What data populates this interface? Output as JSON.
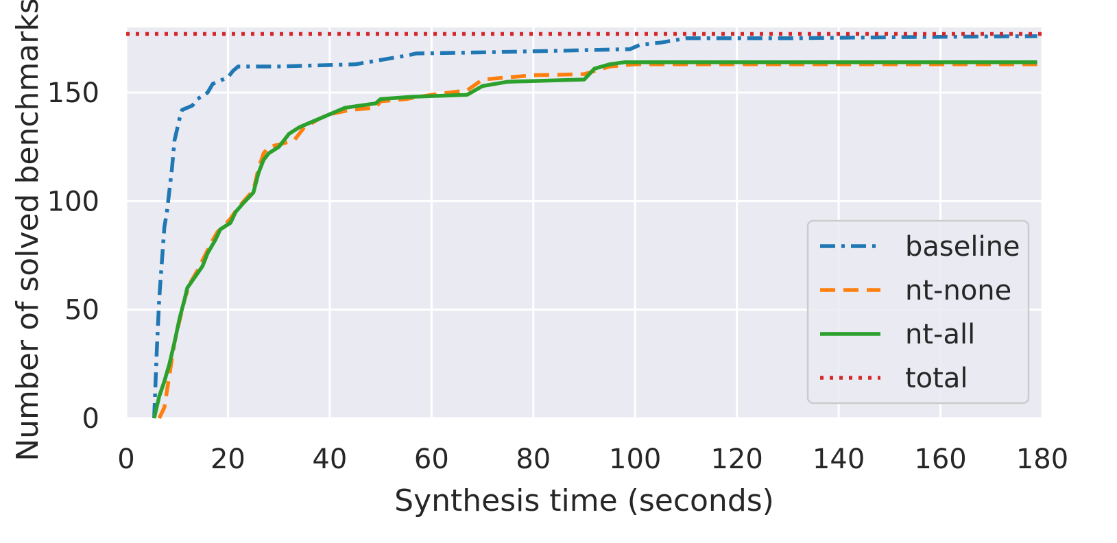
{
  "chart_data": {
    "type": "line",
    "xlabel": "Synthesis time (seconds)",
    "ylabel": "Number of solved benchmarks",
    "xlim": [
      0,
      180
    ],
    "ylim": [
      0,
      180
    ],
    "xticks": [
      "0",
      "20",
      "40",
      "60",
      "80",
      "100",
      "120",
      "140",
      "160",
      "180"
    ],
    "yticks": [
      "0",
      "50",
      "100",
      "150"
    ],
    "grid": true,
    "legend_position": "lower-right",
    "series": [
      {
        "name": "baseline",
        "color": "#1f77b4",
        "style": "dashdot",
        "points": [
          [
            5.5,
            0
          ],
          [
            6.0,
            30
          ],
          [
            6.5,
            55
          ],
          [
            7.5,
            88
          ],
          [
            8.0,
            95
          ],
          [
            9.0,
            115
          ],
          [
            9.5,
            128
          ],
          [
            10.5,
            138
          ],
          [
            11.0,
            142
          ],
          [
            13.0,
            144
          ],
          [
            14.0,
            147
          ],
          [
            16.0,
            150
          ],
          [
            17.0,
            154
          ],
          [
            20.0,
            157
          ],
          [
            21.0,
            160
          ],
          [
            22.0,
            162
          ],
          [
            30.0,
            162
          ],
          [
            45.0,
            163
          ],
          [
            50.0,
            165
          ],
          [
            55.0,
            167
          ],
          [
            57.0,
            168
          ],
          [
            70.0,
            168.5
          ],
          [
            80.0,
            169
          ],
          [
            99.0,
            170
          ],
          [
            101.0,
            172
          ],
          [
            105.0,
            173
          ],
          [
            110.0,
            175
          ],
          [
            130.0,
            175
          ],
          [
            150.0,
            175.5
          ],
          [
            179.0,
            176
          ]
        ]
      },
      {
        "name": "nt-none",
        "color": "#ff7f0e",
        "style": "dashed",
        "points": [
          [
            6.5,
            0
          ],
          [
            7.5,
            5
          ],
          [
            8.5,
            20
          ],
          [
            9.5,
            35
          ],
          [
            10.5,
            45
          ],
          [
            11.5,
            55
          ],
          [
            12.5,
            62
          ],
          [
            14.0,
            68
          ],
          [
            15.5,
            75
          ],
          [
            17.0,
            82
          ],
          [
            18.0,
            86
          ],
          [
            19.0,
            88
          ],
          [
            20.5,
            92
          ],
          [
            22.0,
            97
          ],
          [
            23.5,
            101
          ],
          [
            25.0,
            105
          ],
          [
            26.0,
            115
          ],
          [
            27.0,
            122
          ],
          [
            28.0,
            125
          ],
          [
            30.0,
            126
          ],
          [
            33.0,
            128
          ],
          [
            35.0,
            134
          ],
          [
            38.0,
            138
          ],
          [
            40.0,
            140
          ],
          [
            44.0,
            142
          ],
          [
            49.0,
            143
          ],
          [
            50.0,
            146
          ],
          [
            55.0,
            147
          ],
          [
            60.0,
            149
          ],
          [
            67.0,
            151
          ],
          [
            70.0,
            156
          ],
          [
            80.0,
            158
          ],
          [
            90.0,
            158.5
          ],
          [
            95.0,
            162
          ],
          [
            100.0,
            163
          ],
          [
            179.0,
            163
          ]
        ]
      },
      {
        "name": "nt-all",
        "color": "#2ca02c",
        "style": "solid",
        "points": [
          [
            5.5,
            0
          ],
          [
            6.5,
            10
          ],
          [
            7.5,
            17
          ],
          [
            8.5,
            25
          ],
          [
            9.5,
            35
          ],
          [
            10.5,
            46
          ],
          [
            11.5,
            55
          ],
          [
            12.0,
            60
          ],
          [
            13.5,
            65
          ],
          [
            15.0,
            70
          ],
          [
            16.0,
            76
          ],
          [
            17.5,
            82
          ],
          [
            18.5,
            87
          ],
          [
            20.5,
            90
          ],
          [
            21.5,
            95
          ],
          [
            23.0,
            99
          ],
          [
            25.0,
            104
          ],
          [
            26.0,
            113
          ],
          [
            27.0,
            119
          ],
          [
            28.0,
            122
          ],
          [
            30.0,
            125
          ],
          [
            32.0,
            131
          ],
          [
            34.0,
            134
          ],
          [
            36.0,
            136
          ],
          [
            40.0,
            140
          ],
          [
            43.0,
            143
          ],
          [
            49.0,
            145
          ],
          [
            50.0,
            147
          ],
          [
            56.0,
            148
          ],
          [
            67.0,
            149
          ],
          [
            70.0,
            153
          ],
          [
            75.0,
            155
          ],
          [
            90.0,
            156
          ],
          [
            92.0,
            161
          ],
          [
            95.0,
            163
          ],
          [
            98.0,
            164
          ],
          [
            179.0,
            164
          ]
        ]
      },
      {
        "name": "total",
        "color": "#d62728",
        "style": "dotted",
        "points": [
          [
            0,
            177
          ],
          [
            180,
            177
          ]
        ]
      }
    ]
  }
}
